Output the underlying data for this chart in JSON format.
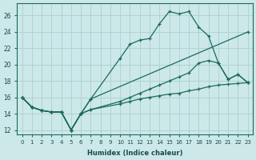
{
  "xlabel": "Humidex (Indice chaleur)",
  "xlim": [
    -0.5,
    23.5
  ],
  "ylim": [
    11.5,
    27.5
  ],
  "xtick_labels": [
    "0",
    "1",
    "2",
    "3",
    "4",
    "5",
    "6",
    "7",
    "8",
    "9",
    "10",
    "11",
    "12",
    "13",
    "14",
    "15",
    "16",
    "17",
    "18",
    "19",
    "20",
    "21",
    "22",
    "23"
  ],
  "ytick_values": [
    12,
    14,
    16,
    18,
    20,
    22,
    24,
    26
  ],
  "bg_color": "#cde8e8",
  "grid_color": "#aed4d4",
  "line_color": "#1a6b5a",
  "lines": [
    {
      "x": [
        0,
        1,
        2,
        3,
        4,
        5,
        6,
        7,
        10,
        11,
        12,
        13,
        14,
        15,
        16,
        17,
        18,
        19,
        20,
        21,
        22,
        23
      ],
      "y": [
        16.0,
        14.8,
        14.4,
        14.2,
        14.2,
        12.0,
        14.0,
        15.8,
        20.8,
        22.5,
        23.0,
        23.2,
        25.0,
        26.5,
        26.2,
        26.5,
        24.6,
        23.5,
        20.2,
        18.2,
        18.8,
        17.8
      ]
    },
    {
      "x": [
        0,
        1,
        2,
        3,
        4,
        5,
        6,
        7,
        23
      ],
      "y": [
        16.0,
        14.8,
        14.4,
        14.2,
        14.2,
        12.0,
        14.0,
        15.8,
        24.0
      ]
    },
    {
      "x": [
        0,
        1,
        2,
        3,
        4,
        5,
        6,
        7,
        10,
        11,
        12,
        13,
        14,
        15,
        16,
        17,
        18,
        19,
        20,
        21,
        22,
        23
      ],
      "y": [
        16.0,
        14.8,
        14.4,
        14.2,
        14.2,
        12.0,
        14.0,
        14.5,
        15.5,
        16.0,
        16.5,
        17.0,
        17.5,
        18.0,
        18.5,
        19.0,
        20.2,
        20.5,
        20.2,
        18.2,
        18.8,
        17.8
      ]
    },
    {
      "x": [
        0,
        1,
        2,
        3,
        4,
        5,
        6,
        7,
        10,
        11,
        12,
        13,
        14,
        15,
        16,
        17,
        18,
        19,
        20,
        21,
        22,
        23
      ],
      "y": [
        16.0,
        14.8,
        14.4,
        14.2,
        14.2,
        12.0,
        14.0,
        14.5,
        15.2,
        15.5,
        15.8,
        16.0,
        16.2,
        16.4,
        16.5,
        16.8,
        17.0,
        17.3,
        17.5,
        17.6,
        17.7,
        17.8
      ]
    }
  ]
}
